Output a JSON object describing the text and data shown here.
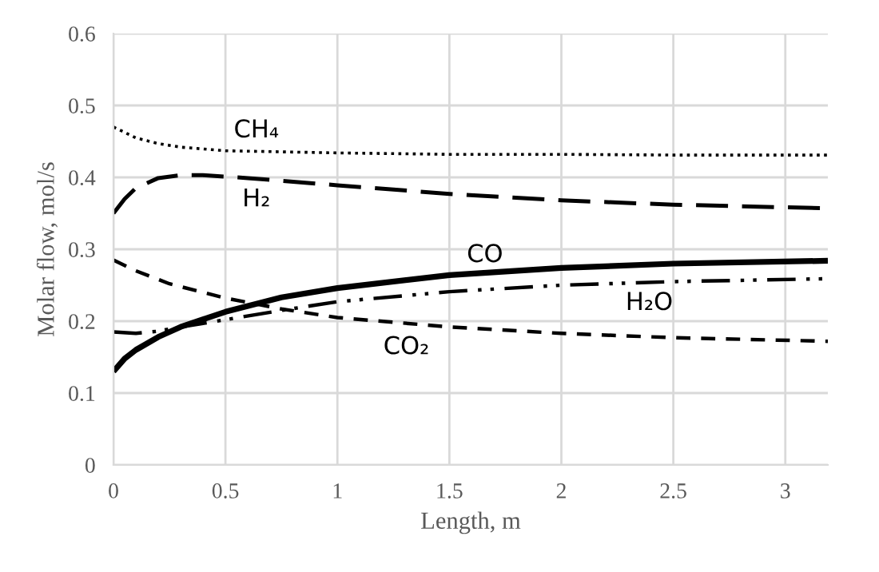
{
  "chart_data": {
    "type": "line",
    "xlabel": "Length, m",
    "ylabel": "Molar flow, mol/s",
    "xlim": [
      0,
      3.19
    ],
    "xticks": [
      0,
      0.5,
      1,
      1.5,
      2,
      2.5,
      3
    ],
    "ylim": [
      0,
      0.6
    ],
    "yticks": [
      0,
      0.1,
      0.2,
      0.3,
      0.4,
      0.5,
      0.6
    ],
    "grid": true,
    "legend": false,
    "marker": "none",
    "series": [
      {
        "name": "CH₄",
        "color": "#000000",
        "line_style": "dotted",
        "x": [
          0,
          0.1,
          0.2,
          0.3,
          0.5,
          1,
          1.5,
          2,
          2.5,
          3.19
        ],
        "values": [
          0.47,
          0.455,
          0.447,
          0.442,
          0.437,
          0.434,
          0.432,
          0.432,
          0.431,
          0.431
        ]
      },
      {
        "name": "H₂",
        "color": "#000000",
        "line_style": "longdash",
        "x": [
          0,
          0.05,
          0.1,
          0.2,
          0.3,
          0.4,
          0.6,
          1,
          1.5,
          2,
          2.5,
          3.19
        ],
        "values": [
          0.35,
          0.37,
          0.385,
          0.399,
          0.403,
          0.403,
          0.399,
          0.389,
          0.377,
          0.368,
          0.362,
          0.357
        ]
      },
      {
        "name": "CO",
        "color": "#000000",
        "line_style": "solid",
        "x": [
          0,
          0.05,
          0.1,
          0.2,
          0.3,
          0.5,
          0.75,
          1,
          1.5,
          2,
          2.5,
          3.19
        ],
        "values": [
          0.13,
          0.148,
          0.16,
          0.178,
          0.192,
          0.213,
          0.233,
          0.246,
          0.264,
          0.274,
          0.28,
          0.284
        ]
      },
      {
        "name": "H₂O",
        "color": "#000000",
        "line_style": "dashdotdot",
        "x": [
          0,
          0.1,
          0.2,
          0.3,
          0.5,
          0.75,
          1,
          1.5,
          2,
          2.5,
          3.19
        ],
        "values": [
          0.185,
          0.183,
          0.186,
          0.192,
          0.202,
          0.215,
          0.227,
          0.241,
          0.25,
          0.255,
          0.259
        ]
      },
      {
        "name": "CO₂",
        "color": "#000000",
        "line_style": "dashed",
        "x": [
          0,
          0.1,
          0.25,
          0.5,
          0.75,
          1,
          1.5,
          2,
          2.5,
          3.19
        ],
        "values": [
          0.285,
          0.27,
          0.252,
          0.232,
          0.217,
          0.205,
          0.192,
          0.183,
          0.177,
          0.172
        ]
      }
    ]
  }
}
